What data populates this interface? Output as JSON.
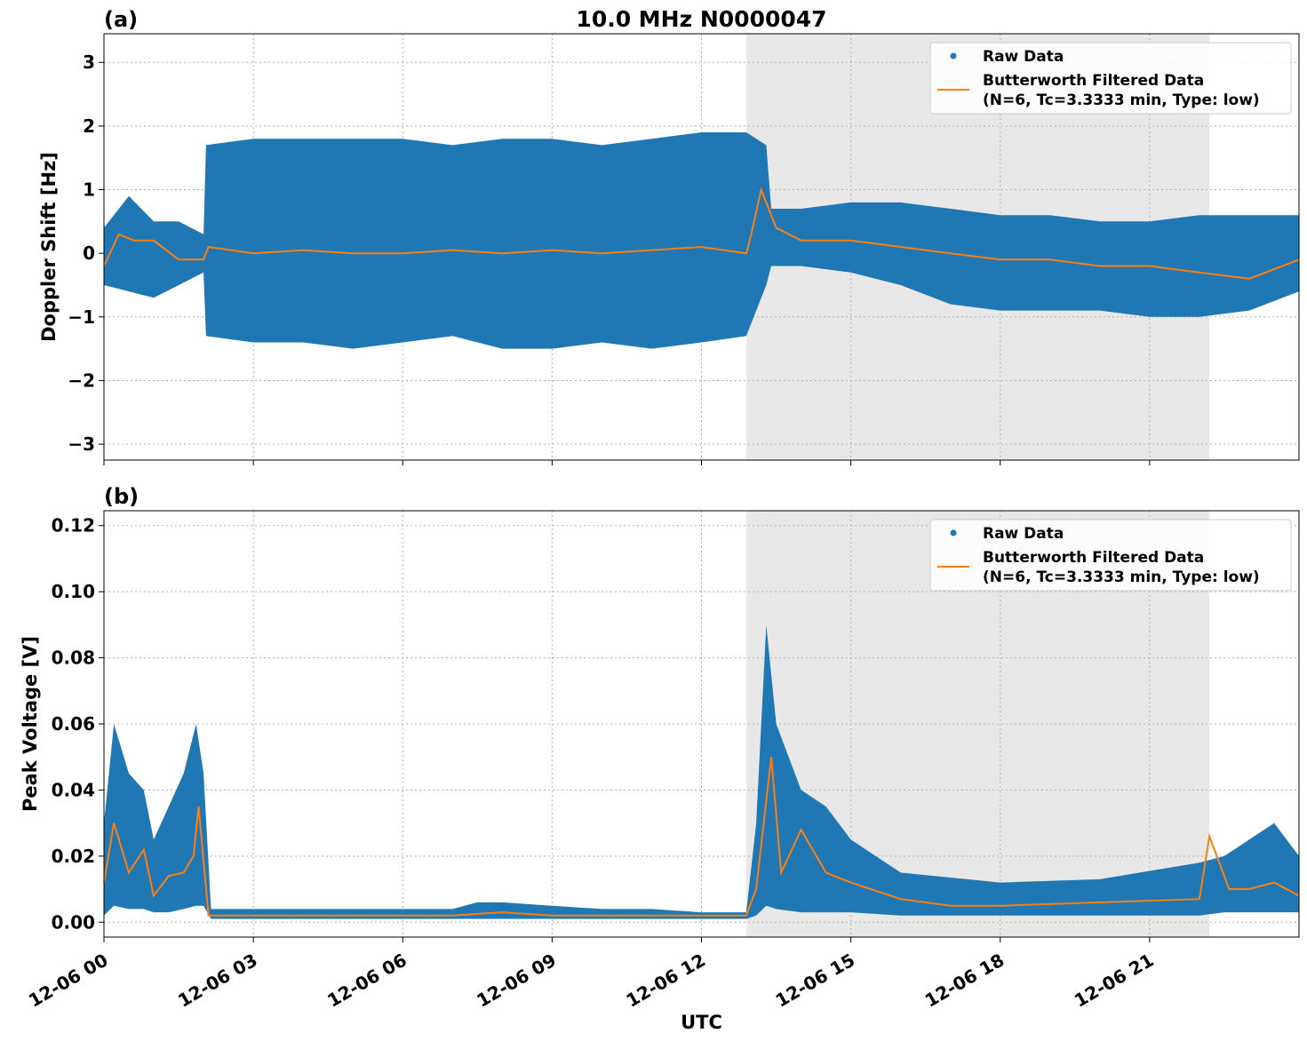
{
  "figure_title": "10.0 MHz N0000047",
  "xlabel": "UTC",
  "colors": {
    "raw": "#1f77b4",
    "filtered": "#ff7f0e",
    "shade": "#e8e8e8"
  },
  "chart_data": [
    {
      "type": "scatter",
      "panel_label": "(a)",
      "title": "10.0 MHz N0000047",
      "xlabel": "",
      "ylabel": "Doppler Shift [Hz]",
      "xlim_hours": [
        0,
        24
      ],
      "ylim": [
        -3.25,
        3.45
      ],
      "yticks": [
        -3,
        -2,
        -1,
        0,
        1,
        2,
        3
      ],
      "ytick_labels": [
        "−3",
        "−2",
        "−1",
        "0",
        "1",
        "2",
        "3"
      ],
      "grid": true,
      "legend_position": "top-right",
      "shaded_hours": [
        12.9,
        22.2
      ],
      "legend": [
        "Raw Data",
        "Butterworth Filtered Data",
        "(N=6, Tc=3.3333 min, Type: low)"
      ],
      "series": [
        {
          "name": "Raw Data",
          "kind": "scatter-envelope",
          "x_hours": [
            0,
            0.5,
            1,
            1.5,
            2,
            2.05,
            3,
            4,
            5,
            6,
            7,
            8,
            9,
            10,
            11,
            12,
            12.9,
            13.3,
            13.4,
            14,
            15,
            16,
            17,
            18,
            19,
            20,
            21,
            22,
            23,
            24
          ],
          "upper": [
            0.4,
            0.9,
            0.5,
            0.5,
            0.3,
            1.7,
            1.8,
            1.8,
            1.8,
            1.8,
            1.7,
            1.8,
            1.8,
            1.7,
            1.8,
            1.9,
            1.9,
            1.7,
            0.7,
            0.7,
            0.8,
            0.8,
            0.7,
            0.6,
            0.6,
            0.5,
            0.5,
            0.6,
            0.6,
            0.6
          ],
          "lower": [
            -0.5,
            -0.6,
            -0.7,
            -0.5,
            -0.3,
            -1.3,
            -1.4,
            -1.4,
            -1.5,
            -1.4,
            -1.3,
            -1.5,
            -1.5,
            -1.4,
            -1.5,
            -1.4,
            -1.3,
            -0.5,
            -0.2,
            -0.2,
            -0.3,
            -0.5,
            -0.8,
            -0.9,
            -0.9,
            -0.9,
            -1.0,
            -1.0,
            -0.9,
            -0.6
          ]
        },
        {
          "name": "Butterworth Filtered Data",
          "x_hours": [
            0,
            0.3,
            0.6,
            1,
            1.5,
            2,
            2.1,
            3,
            4,
            5,
            6,
            7,
            8,
            9,
            10,
            11,
            12,
            12.9,
            13.0,
            13.2,
            13.5,
            14,
            15,
            16,
            17,
            18,
            19,
            20,
            21,
            22,
            23,
            24
          ],
          "values": [
            -0.2,
            0.3,
            0.2,
            0.2,
            -0.1,
            -0.1,
            0.1,
            0.0,
            0.05,
            0.0,
            0.0,
            0.05,
            0.0,
            0.05,
            0.0,
            0.05,
            0.1,
            0.0,
            0.3,
            1.0,
            0.4,
            0.2,
            0.2,
            0.1,
            0.0,
            -0.1,
            -0.1,
            -0.2,
            -0.2,
            -0.3,
            -0.4,
            -0.1
          ]
        }
      ]
    },
    {
      "type": "scatter",
      "panel_label": "(b)",
      "title": "",
      "xlabel": "UTC",
      "ylabel": "Peak Voltage [V]",
      "xlim_hours": [
        0,
        24
      ],
      "ylim": [
        -0.0045,
        0.1245
      ],
      "yticks": [
        0.0,
        0.02,
        0.04,
        0.06,
        0.08,
        0.1,
        0.12
      ],
      "ytick_labels": [
        "0.00",
        "0.02",
        "0.04",
        "0.06",
        "0.08",
        "0.10",
        "0.12"
      ],
      "xticks_hours": [
        0,
        3,
        6,
        9,
        12,
        15,
        18,
        21
      ],
      "xtick_labels": [
        "12-06 00",
        "12-06 03",
        "12-06 06",
        "12-06 09",
        "12-06 12",
        "12-06 15",
        "12-06 18",
        "12-06 21"
      ],
      "grid": true,
      "legend_position": "top-right",
      "shaded_hours": [
        12.9,
        22.2
      ],
      "legend": [
        "Raw Data",
        "Butterworth Filtered Data",
        "(N=6, Tc=3.3333 min, Type: low)"
      ],
      "series": [
        {
          "name": "Raw Data",
          "kind": "scatter-envelope",
          "x_hours": [
            0,
            0.2,
            0.5,
            0.8,
            1.0,
            1.3,
            1.6,
            1.85,
            2.0,
            2.15,
            3,
            5,
            7,
            7.5,
            8,
            9,
            10,
            11,
            12,
            12.9,
            13.1,
            13.3,
            13.5,
            14,
            14.5,
            15,
            16,
            18,
            20,
            22,
            22.5,
            23,
            23.5,
            24
          ],
          "upper": [
            0.03,
            0.06,
            0.045,
            0.04,
            0.025,
            0.035,
            0.045,
            0.06,
            0.045,
            0.004,
            0.004,
            0.004,
            0.004,
            0.006,
            0.006,
            0.005,
            0.004,
            0.004,
            0.003,
            0.003,
            0.03,
            0.09,
            0.06,
            0.04,
            0.035,
            0.025,
            0.015,
            0.012,
            0.013,
            0.018,
            0.02,
            0.025,
            0.03,
            0.02
          ],
          "lower": [
            0.002,
            0.005,
            0.004,
            0.004,
            0.003,
            0.003,
            0.004,
            0.005,
            0.005,
            0.001,
            0.001,
            0.001,
            0.001,
            0.001,
            0.001,
            0.001,
            0.001,
            0.001,
            0.001,
            0.001,
            0.002,
            0.005,
            0.004,
            0.003,
            0.003,
            0.003,
            0.002,
            0.002,
            0.002,
            0.002,
            0.003,
            0.003,
            0.003,
            0.003
          ]
        },
        {
          "name": "Butterworth Filtered Data",
          "x_hours": [
            0,
            0.2,
            0.5,
            0.8,
            1.0,
            1.3,
            1.6,
            1.8,
            1.9,
            2.1,
            3,
            5,
            7,
            8,
            9,
            10,
            11,
            12,
            12.9,
            13.1,
            13.4,
            13.6,
            14,
            14.5,
            15,
            16,
            17,
            18,
            20,
            22,
            22.2,
            22.6,
            23,
            23.5,
            24
          ],
          "values": [
            0.012,
            0.03,
            0.015,
            0.022,
            0.008,
            0.014,
            0.015,
            0.02,
            0.035,
            0.002,
            0.002,
            0.002,
            0.002,
            0.003,
            0.002,
            0.002,
            0.002,
            0.002,
            0.002,
            0.01,
            0.05,
            0.015,
            0.028,
            0.015,
            0.012,
            0.007,
            0.005,
            0.005,
            0.006,
            0.007,
            0.026,
            0.01,
            0.01,
            0.012,
            0.008
          ]
        }
      ]
    }
  ]
}
